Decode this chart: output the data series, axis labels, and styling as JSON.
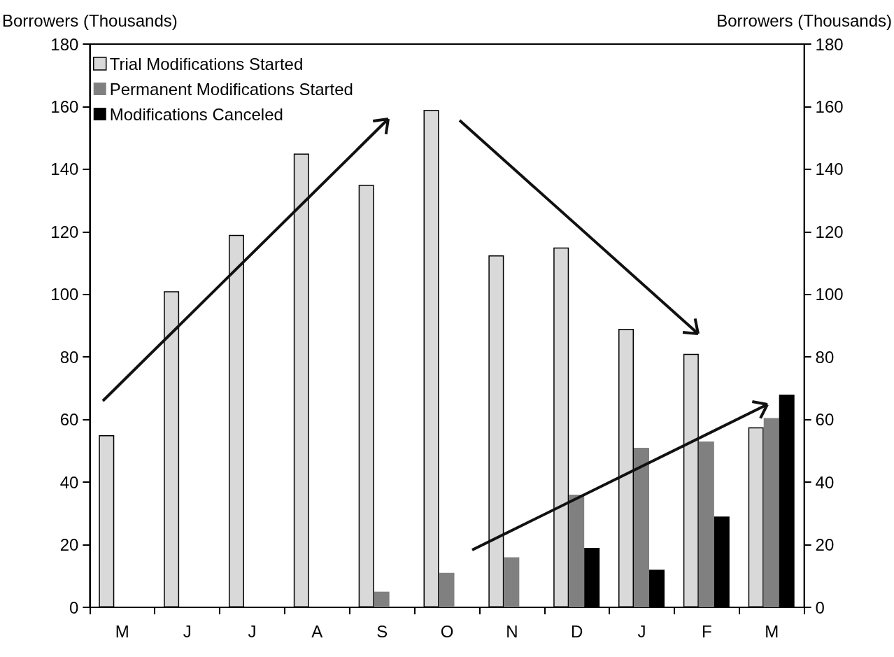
{
  "chart_data": {
    "type": "bar",
    "ylabel": "Borrowers (Thousands)",
    "y2label": "Borrowers (Thousands)",
    "categories": [
      "M",
      "J",
      "J",
      "A",
      "S",
      "O",
      "N",
      "D",
      "J",
      "F",
      "M"
    ],
    "series": [
      {
        "name": "Trial Modifications Started",
        "color": "#d9d9d9",
        "values": [
          55,
          101,
          119,
          145,
          135,
          159,
          112.5,
          115,
          89,
          81,
          57.5
        ]
      },
      {
        "name": "Permanent Modifications Started",
        "color": "#808080",
        "values": [
          null,
          null,
          null,
          null,
          5,
          11,
          16,
          36,
          51,
          53,
          60.5
        ]
      },
      {
        "name": "Modifications Canceled",
        "color": "#000000",
        "values": [
          null,
          null,
          null,
          null,
          null,
          null,
          null,
          19,
          12,
          29,
          68
        ]
      }
    ],
    "ylim": [
      0,
      180
    ],
    "yticks": [
      0,
      20,
      40,
      60,
      80,
      100,
      120,
      140,
      160,
      180
    ],
    "y2lim": [
      0,
      180
    ],
    "y2ticks": [
      0,
      20,
      40,
      60,
      80,
      100,
      120,
      140,
      160,
      180
    ],
    "grid": false,
    "legend": "top left"
  }
}
